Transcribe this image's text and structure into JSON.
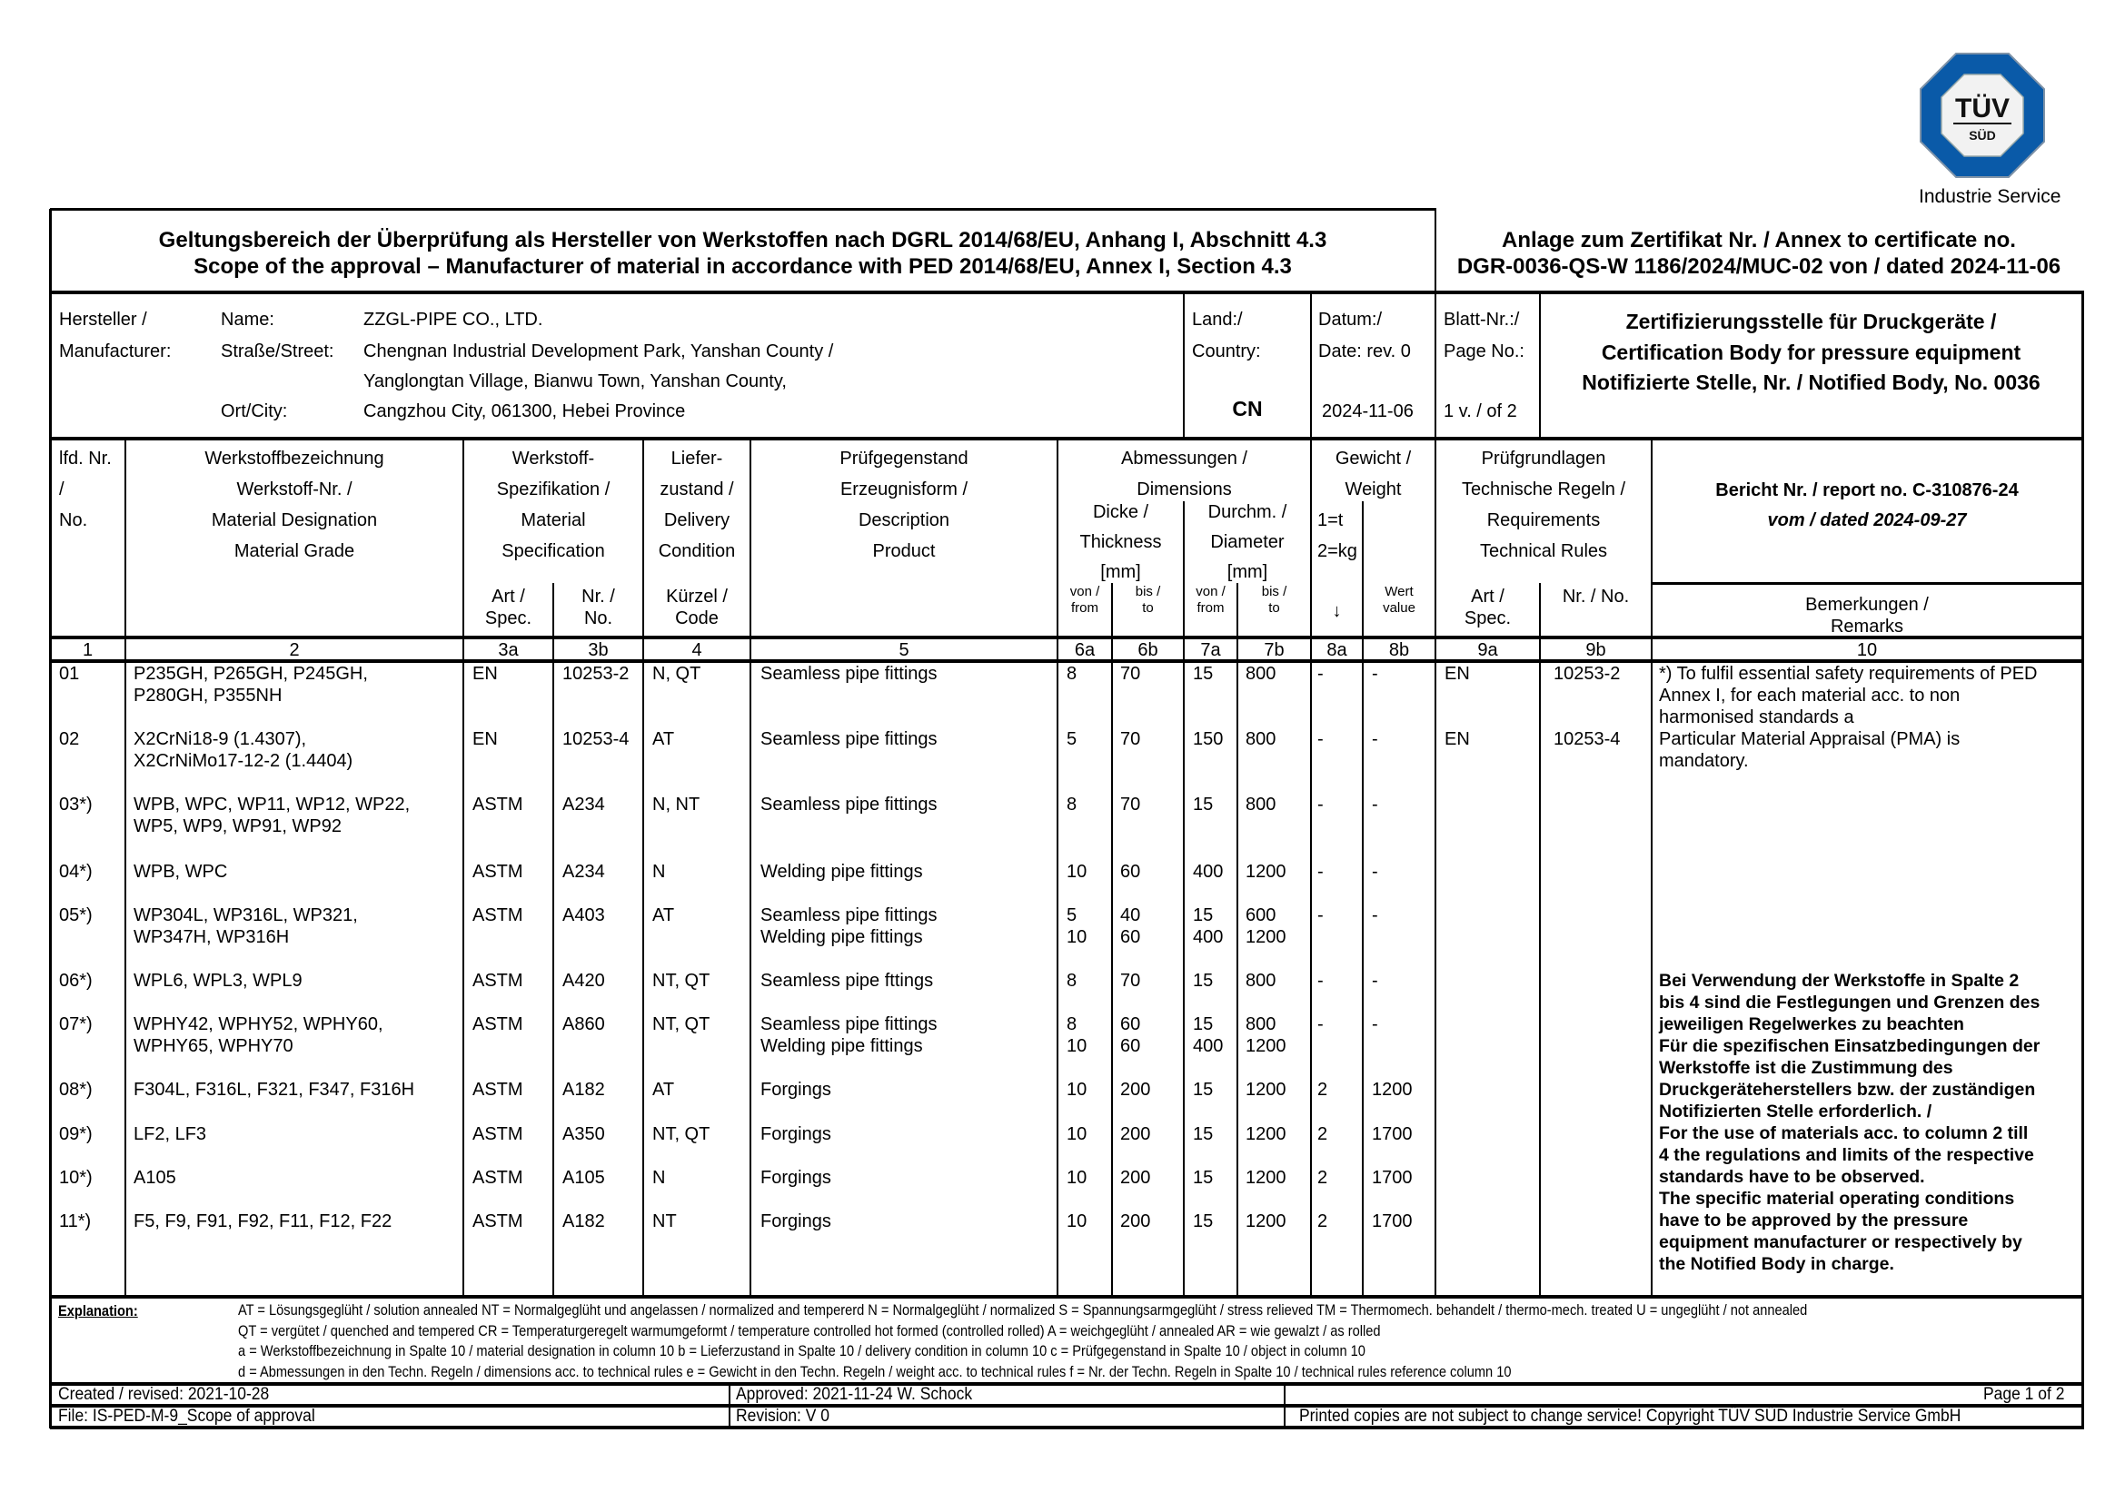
{
  "logo": {
    "brand": "TÜV",
    "sub": "SÜD",
    "division": "Industrie Service",
    "color": "#0a5aa8"
  },
  "title": {
    "line1": "Geltungsbereich der Überprüfung als Hersteller von Werkstoffen nach DGRL 2014/68/EU, Anhang I, Abschnitt 4.3",
    "line2": "Scope of the approval – Manufacturer of material in accordance with PED 2014/68/EU, Annex I, Section 4.3",
    "annex1": "Anlage zum Zertifikat Nr. / Annex to certificate no.",
    "annex2": "DGR-0036-QS-W 1186/2024/MUC-02 von / dated 2024-11-06"
  },
  "manufacturer": {
    "label1": "Hersteller /",
    "label2": "Manufacturer:",
    "name_label": "Name:",
    "name": "ZZGL-PIPE CO., LTD.",
    "street_label": "Straße/Street:",
    "street1": "Chengnan Industrial Development Park, Yanshan County /",
    "street2": "Yanglongtan Village, Bianwu Town, Yanshan County,",
    "city_label": "Ort/City:",
    "city": "Cangzhou City, 061300, Hebei Province",
    "country_label1": "Land:/",
    "country_label2": "Country:",
    "country": "CN",
    "date_label1": "Datum:/",
    "date_label2": "Date: rev. 0",
    "date": "2024-11-06",
    "page_label1": "Blatt-Nr.:/",
    "page_label2": "Page No.:",
    "page": "1 v. / of 2",
    "body1": "Zertifizierungsstelle für Druckgeräte /",
    "body2": "Certification Body for pressure equipment",
    "body3": "Notifizierte Stelle, Nr. / Notified Body, No. 0036"
  },
  "headers": {
    "c1": [
      "lfd. Nr.",
      "/",
      "No."
    ],
    "c2": [
      "Werkstoffbezeichnung",
      "Werkstoff-Nr. /",
      "Material Designation",
      "Material Grade"
    ],
    "c3": [
      "Werkstoff-",
      "Spezifikation /",
      "Material",
      "Specification"
    ],
    "c3a": [
      "Art /",
      "Spec."
    ],
    "c3b": [
      "Nr. /",
      "No."
    ],
    "c4": [
      "Liefer-",
      "zustand /",
      "Delivery",
      "Condition"
    ],
    "c4a": [
      "Kürzel /",
      "Code"
    ],
    "c5": [
      "Prüfgegenstand",
      "Erzeugnisform /",
      "Description",
      "Product"
    ],
    "c67": [
      "Abmessungen /",
      "Dimensions"
    ],
    "c6": [
      "Dicke /",
      "Thickness",
      "[mm]"
    ],
    "c7": [
      "Durchm. /",
      "Diameter",
      "[mm]"
    ],
    "from": [
      "von /",
      "from"
    ],
    "to": [
      "bis /",
      "to"
    ],
    "c8": [
      "Gewicht /",
      "Weight"
    ],
    "c8a": [
      "1=t",
      "2=kg",
      "↓"
    ],
    "c8b": [
      "Wert",
      "value"
    ],
    "c9": [
      "Prüfgrundlagen",
      "Technische Regeln /",
      "Requirements",
      "Technical Rules"
    ],
    "c9a": [
      "Art /",
      "Spec."
    ],
    "c9b": [
      "Nr. / No."
    ],
    "report": "Bericht Nr. / report no. C-310876-24",
    "report_date": "vom / dated 2024-09-27",
    "c10": [
      "Bemerkungen /",
      "Remarks"
    ],
    "numbers": [
      "1",
      "2",
      "3a",
      "3b",
      "4",
      "5",
      "6a",
      "6b",
      "7a",
      "7b",
      "8a",
      "8b",
      "9a",
      "9b",
      "10"
    ]
  },
  "rows": [
    {
      "no": "01",
      "material": "P235GH, P265GH, P245GH,\nP280GH, P355NH",
      "spec": "EN",
      "spec_no": "10253-2",
      "delivery": "N, QT",
      "product": "Seamless pipe fittings",
      "t_from": "8",
      "t_to": "70",
      "d_from": "15",
      "d_to": "800",
      "w_unit": "-",
      "w_value": "-",
      "req_spec": "EN",
      "req_no": "10253-2"
    },
    {
      "no": "02",
      "material": "X2CrNi18-9 (1.4307),\nX2CrNiMo17-12-2 (1.4404)",
      "spec": "EN",
      "spec_no": "10253-4",
      "delivery": "AT",
      "product": "Seamless pipe fittings",
      "t_from": "5",
      "t_to": "70",
      "d_from": "150",
      "d_to": "800",
      "w_unit": "-",
      "w_value": "-",
      "req_spec": "EN",
      "req_no": "10253-4"
    },
    {
      "no": "03*)",
      "material": "WPB, WPC, WP11, WP12, WP22,\nWP5, WP9, WP91, WP92",
      "spec": "ASTM",
      "spec_no": "A234",
      "delivery": "N, NT",
      "product": "Seamless pipe fittings",
      "t_from": "8",
      "t_to": "70",
      "d_from": "15",
      "d_to": "800",
      "w_unit": "-",
      "w_value": "-",
      "req_spec": "",
      "req_no": ""
    },
    {
      "no": "04*)",
      "material": "WPB, WPC",
      "spec": "ASTM",
      "spec_no": "A234",
      "delivery": "N",
      "product": "Welding pipe fittings",
      "t_from": "10",
      "t_to": "60",
      "d_from": "400",
      "d_to": "1200",
      "w_unit": "-",
      "w_value": "-",
      "req_spec": "",
      "req_no": ""
    },
    {
      "no": "05*)",
      "material": "WP304L, WP316L, WP321,\nWP347H, WP316H",
      "spec": "ASTM",
      "spec_no": "A403",
      "delivery": "AT",
      "product": "Seamless pipe fittings\nWelding pipe fittings",
      "t_from": "5\n10",
      "t_to": "40\n60",
      "d_from": "15\n400",
      "d_to": "600\n1200",
      "w_unit": "-",
      "w_value": "-",
      "req_spec": "",
      "req_no": ""
    },
    {
      "no": "06*)",
      "material": "WPL6, WPL3, WPL9",
      "spec": "ASTM",
      "spec_no": "A420",
      "delivery": "NT, QT",
      "product": "Seamless pipe fttings",
      "t_from": "8",
      "t_to": "70",
      "d_from": "15",
      "d_to": "800",
      "w_unit": "-",
      "w_value": "-",
      "req_spec": "",
      "req_no": ""
    },
    {
      "no": "07*)",
      "material": "WPHY42, WPHY52, WPHY60,\nWPHY65, WPHY70",
      "spec": "ASTM",
      "spec_no": "A860",
      "delivery": "NT, QT",
      "product": "Seamless pipe fittings\nWelding pipe fittings",
      "t_from": "8\n10",
      "t_to": "60\n60",
      "d_from": "15\n400",
      "d_to": "800\n1200",
      "w_unit": "-",
      "w_value": "-",
      "req_spec": "",
      "req_no": ""
    },
    {
      "no": "08*)",
      "material": "F304L, F316L, F321, F347, F316H",
      "spec": "ASTM",
      "spec_no": "A182",
      "delivery": "AT",
      "product": "Forgings",
      "t_from": "10",
      "t_to": "200",
      "d_from": "15",
      "d_to": "1200",
      "w_unit": "2",
      "w_value": "1200",
      "req_spec": "",
      "req_no": ""
    },
    {
      "no": "09*)",
      "material": "LF2, LF3",
      "spec": "ASTM",
      "spec_no": "A350",
      "delivery": "NT, QT",
      "product": "Forgings",
      "t_from": "10",
      "t_to": "200",
      "d_from": "15",
      "d_to": "1200",
      "w_unit": "2",
      "w_value": "1700",
      "req_spec": "",
      "req_no": ""
    },
    {
      "no": "10*)",
      "material": "A105",
      "spec": "ASTM",
      "spec_no": "A105",
      "delivery": "N",
      "product": "Forgings",
      "t_from": "10",
      "t_to": "200",
      "d_from": "15",
      "d_to": "1200",
      "w_unit": "2",
      "w_value": "1700",
      "req_spec": "",
      "req_no": ""
    },
    {
      "no": "11*)",
      "material": "F5, F9, F91, F92, F11, F12, F22",
      "spec": "ASTM",
      "spec_no": "A182",
      "delivery": "NT",
      "product": "Forgings",
      "t_from": "10",
      "t_to": "200",
      "d_from": "15",
      "d_to": "1200",
      "w_unit": "2",
      "w_value": "1700",
      "req_spec": "",
      "req_no": ""
    }
  ],
  "remarks": {
    "note": "*) To fulfil essential safety requirements of PED\nAnnex I, for each material acc. to non\nharmonised standards a\nParticular Material Appraisal (PMA) is\nmandatory.",
    "bold": "Bei Verwendung der Werkstoffe in Spalte 2\nbis 4 sind die Festlegungen und Grenzen des\njeweiligen Regelwerkes zu beachten\nFür die spezifischen Einsatzbedingungen der\nWerkstoffe ist die Zustimmung des\nDruckgeräteherstellers bzw. der zuständigen\nNotifizierten Stelle erforderlich. /\nFor the use of materials acc. to column 2 till\n4 the regulations and limits of the respective\nstandards have to be observed.\nThe specific material operating conditions\nhave to be approved by the pressure\nequipment manufacturer or respectively by\nthe Notified Body in charge."
  },
  "explanation": {
    "label": "Explanation:",
    "lines": [
      "AT = Lösungsgeglüht / solution annealed   NT = Normalgeglüht und angelassen / normalized and tempererd   N = Normalgeglüht / normalized   S = Spannungsarmgeglüht / stress relieved   TM  = Thermomech. behandelt / thermo-mech. treated   U = ungeglüht / not annealed",
      "QT = vergütet / quenched and tempered   CR = Temperaturgeregelt warmumgeformt / temperature controlled hot formed (controlled rolled)   A =  weichgeglüht / annealed   AR = wie gewalzt / as rolled",
      "a = Werkstoffbezeichnung in Spalte 10 / material designation in column 10   b = Lieferzustand in Spalte 10 / delivery condition in column 10   c = Prüfgegenstand in Spalte 10 / object in column 10",
      "d = Abmessungen in den Techn. Regeln / dimensions acc. to technical rules   e = Gewicht in den Techn. Regeln / weight acc. to technical rules   f = Nr. der Techn. Regeln in Spalte 10 / technical rules reference column 10"
    ]
  },
  "footer": {
    "created": "Created / revised: 2021-10-28",
    "approved": "Approved: 2021-11-24 W. Schock",
    "page": "Page 1 of 2",
    "file": "File: IS-PED-M-9_Scope of approval",
    "revision": "Revision:   V 0",
    "copyright": "Printed copies are not subject to change service! Copyright TÜV SÜD Industrie Service GmbH"
  }
}
